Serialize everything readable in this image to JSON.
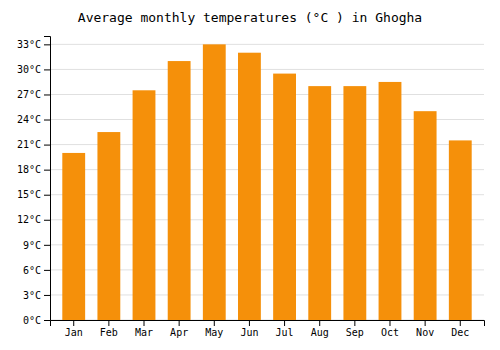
{
  "chart_data": {
    "type": "bar",
    "title": "Average monthly temperatures (°C ) in Ghogha",
    "categories": [
      "Jan",
      "Feb",
      "Mar",
      "Apr",
      "May",
      "Jun",
      "Jul",
      "Aug",
      "Sep",
      "Oct",
      "Nov",
      "Dec"
    ],
    "values": [
      20.0,
      22.5,
      27.5,
      31.0,
      33.0,
      32.0,
      29.5,
      28.0,
      28.0,
      28.5,
      25.0,
      21.5
    ],
    "color": "#F5900A",
    "ylim": [
      0,
      34
    ],
    "yticks": [
      {
        "value": 0,
        "label": "0°C"
      },
      {
        "value": 3,
        "label": "3°C"
      },
      {
        "value": 6,
        "label": "6°C"
      },
      {
        "value": 9,
        "label": "9°C"
      },
      {
        "value": 12,
        "label": "12°C"
      },
      {
        "value": 15,
        "label": "15°C"
      },
      {
        "value": 18,
        "label": "18°C"
      },
      {
        "value": 21,
        "label": "21°C"
      },
      {
        "value": 24,
        "label": "24°C"
      },
      {
        "value": 27,
        "label": "27°C"
      },
      {
        "value": 30,
        "label": "30°C"
      },
      {
        "value": 33,
        "label": "33°C"
      }
    ],
    "grid": true
  }
}
